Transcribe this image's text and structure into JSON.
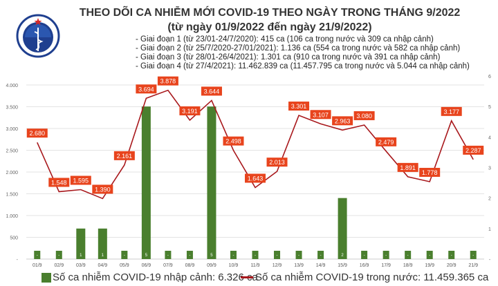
{
  "logo": {
    "text": "BỘ Y TẾ",
    "subtext": "MINISTRY OF HEALTH"
  },
  "title": "THEO DÕI CA NHIỄM MỚI COVID-19 THEO NGÀY TRONG THÁNG 9/2022",
  "subtitle": "(từ ngày 01/9/2022 đến ngày 21/9/2022)",
  "phases": [
    "- Giai đoạn 1 (từ 23/01-24/7/2020): 415 ca (106 ca trong nước và 309 ca nhập cảnh)",
    "- Giai đoạn 2 (từ 25/7/2020-27/01/2021): 1.136 ca (554 ca trong nước và 582 ca nhập cảnh)",
    "- Giai đoạn 3 (từ 28/01-26/4/2021): 1.301 ca (910 ca trong nước và 391 ca nhập cảnh)",
    "- Giai đoạn 4 (từ 27/4/2021): 11.462.839 ca (11.457.795 ca trong nước và 5.044 ca nhập cảnh)"
  ],
  "colors": {
    "bar": "#4a7f2e",
    "line": "#a8181c",
    "label_bg": "#e8441d",
    "grid": "#e3e3e3"
  },
  "chart_data": {
    "type": "bar+line",
    "categories": [
      "01/9",
      "02/9",
      "03/9",
      "04/9",
      "05/9",
      "06/9",
      "07/9",
      "08/9",
      "09/9",
      "10/9",
      "11/9",
      "12/9",
      "13/9",
      "14/9",
      "15/9",
      "16/9",
      "17/9",
      "18/9",
      "19/9",
      "20/9",
      "21/9"
    ],
    "series": [
      {
        "name": "Số ca nhiễm COVID-19 nhập cảnh: 6.326 ca",
        "type": "bar",
        "axis": "right",
        "values": [
          0,
          0,
          1,
          1,
          0,
          5,
          0,
          0,
          5,
          0,
          0,
          0,
          0,
          0,
          2,
          0,
          0,
          0,
          0,
          0,
          0
        ],
        "labels": [
          "-",
          "-",
          "1",
          "1",
          "-",
          "5",
          "-",
          "-",
          "5",
          "-",
          "-",
          "-",
          "-",
          "-",
          "2",
          "-",
          "-",
          "-",
          "-",
          "-",
          "-"
        ]
      },
      {
        "name": "Số ca nhiễm COVID-19 trong nước: 11.459.365 ca",
        "type": "line",
        "axis": "left",
        "values": [
          2680,
          1548,
          1595,
          1390,
          2161,
          3694,
          3878,
          3191,
          3644,
          2498,
          1643,
          2013,
          3301,
          3107,
          2963,
          3080,
          2479,
          1891,
          1778,
          3177,
          2287
        ],
        "labels": [
          "2.680",
          "1.548",
          "1.595",
          "1.390",
          "2.161",
          "3.694",
          "3.878",
          "3.191",
          "3.644",
          "2.498",
          "1.643",
          "2.013",
          "3.301",
          "3.107",
          "2.963",
          "3.080",
          "2.479",
          "1.891",
          "1.778",
          "3.177",
          "2.287"
        ]
      }
    ],
    "left_axis": {
      "range": [
        0,
        4000
      ],
      "ticks": [
        "-",
        "500",
        "1.000",
        "1.500",
        "2.000",
        "2.500",
        "3.000",
        "3.500",
        "4.000"
      ]
    },
    "right_axis": {
      "range": [
        0,
        6
      ],
      "ticks": [
        "-",
        "1",
        "2",
        "3",
        "4",
        "5",
        "6"
      ]
    },
    "grid": true,
    "legend": "bottom"
  }
}
